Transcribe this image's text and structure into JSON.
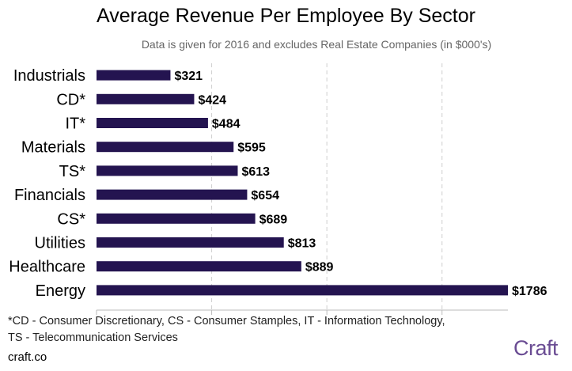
{
  "chart_data": {
    "type": "bar",
    "orientation": "horizontal",
    "title": "Average Revenue Per Employee By Sector",
    "subtitle": "Data is given for 2016 and excludes Real Estate Companies (in $000's)",
    "categories": [
      "Industrials",
      "CD*",
      "IT*",
      "Materials",
      "TS*",
      "Financials",
      "CS*",
      "Utilities",
      "Healthcare",
      "Energy"
    ],
    "values": [
      321,
      424,
      484,
      595,
      613,
      654,
      689,
      813,
      889,
      1786
    ],
    "value_labels": [
      "$321",
      "$424",
      "$484",
      "$595",
      "$613",
      "$654",
      "$689",
      "$813",
      "$889",
      "$1786"
    ],
    "xlim": [
      0,
      1800
    ],
    "grid_values": [
      500,
      1000,
      1500
    ],
    "grid": true,
    "bar_color": "#241450",
    "grid_color": "#cfcfcf"
  },
  "footnote": {
    "line1": "*CD - Consumer Discretionary, CS - Consumer Stamples, IT - Information Technology,",
    "line2": "TS - Telecommunication Services"
  },
  "site": "craft.co",
  "logo": "Craft",
  "colors": {
    "logo": "#6a4c93"
  }
}
